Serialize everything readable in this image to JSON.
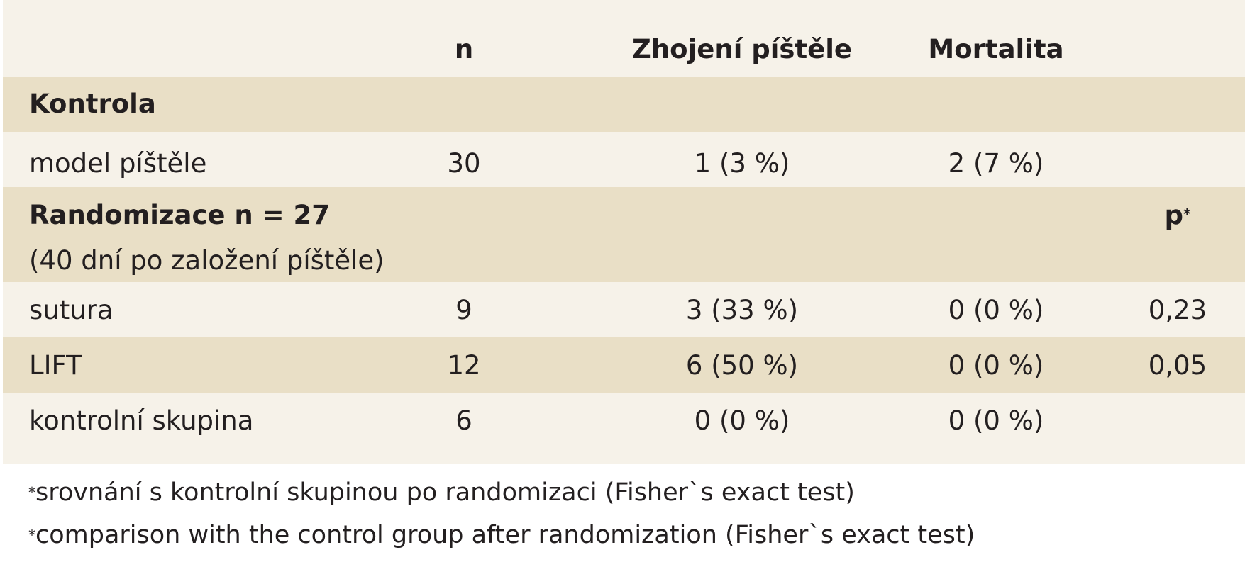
{
  "table": {
    "headers": {
      "label": "",
      "n": "n",
      "healing": "Zhojení píštěle",
      "mortality": "Mortalita"
    },
    "sections": [
      {
        "title": "Kontrola",
        "rows": [
          {
            "label": "model píštěle",
            "n": "30",
            "healing": "1 (3 %)",
            "mortality": "2 (7 %)",
            "p": ""
          }
        ]
      },
      {
        "title_line1": "Randomizace n = 27",
        "title_line2": "(40 dní po založení píštěle)",
        "p_header": "p",
        "p_header_marker": "*",
        "rows": [
          {
            "label": "sutura",
            "n": "9",
            "healing": "3 (33 %)",
            "mortality": "0 (0 %)",
            "p": "0,23"
          },
          {
            "label": "LIFT",
            "n": "12",
            "healing": "6 (50 %)",
            "mortality": "0 (0 %)",
            "p": "0,05"
          },
          {
            "label": "kontrolní skupina",
            "n": "6",
            "healing": "0 (0 %)",
            "mortality": "0 (0 %)",
            "p": ""
          }
        ]
      }
    ]
  },
  "footnotes": [
    {
      "marker": "*",
      "text": "srovnání s kontrolní skupinou po randomizaci (Fisher`s exact test)"
    },
    {
      "marker": "*",
      "text": "comparison with the control group after randomization (Fisher`s exact test)"
    }
  ],
  "colors": {
    "row_light": "#f6f2e9",
    "row_dark": "#e9dfc6",
    "text": "#231f20"
  }
}
